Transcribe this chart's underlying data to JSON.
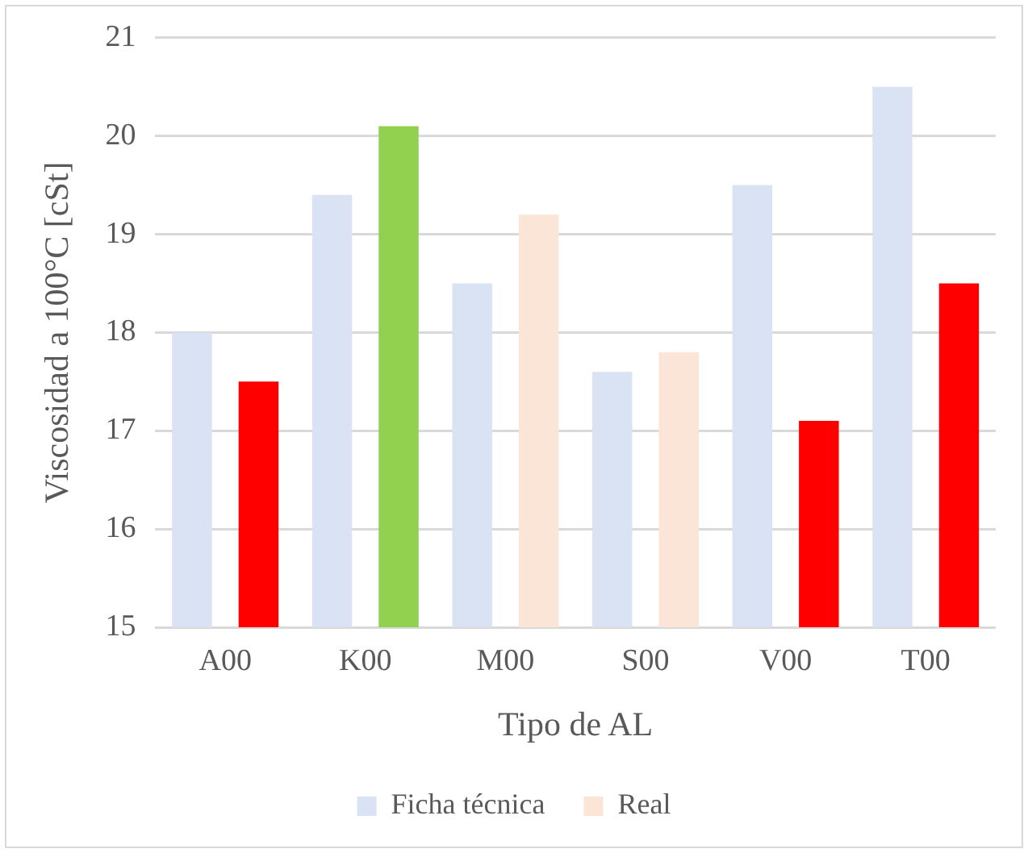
{
  "chart_data": {
    "type": "bar",
    "xlabel": "Tipo de AL",
    "ylabel": "Viscosidad a 100°C [cSt]",
    "categories": [
      "A00",
      "K00",
      "M00",
      "S00",
      "V00",
      "T00"
    ],
    "series": [
      {
        "name": "Ficha técnica",
        "color": "#dae3f3",
        "values": [
          18,
          19.4,
          18.5,
          17.6,
          19.5,
          20.5
        ]
      },
      {
        "name": "Real",
        "color": "#fbe5d6",
        "colors": [
          "#ff0000",
          "#92d050",
          "#fbe5d6",
          "#fbe5d6",
          "#ff0000",
          "#ff0000"
        ],
        "values": [
          17.5,
          20.1,
          19.2,
          17.8,
          17.1,
          18.5
        ]
      }
    ],
    "ylim": [
      15,
      21
    ],
    "yticks": [
      15,
      16,
      17,
      18,
      19,
      20,
      21
    ],
    "grid": "y",
    "legend": "bottom"
  }
}
